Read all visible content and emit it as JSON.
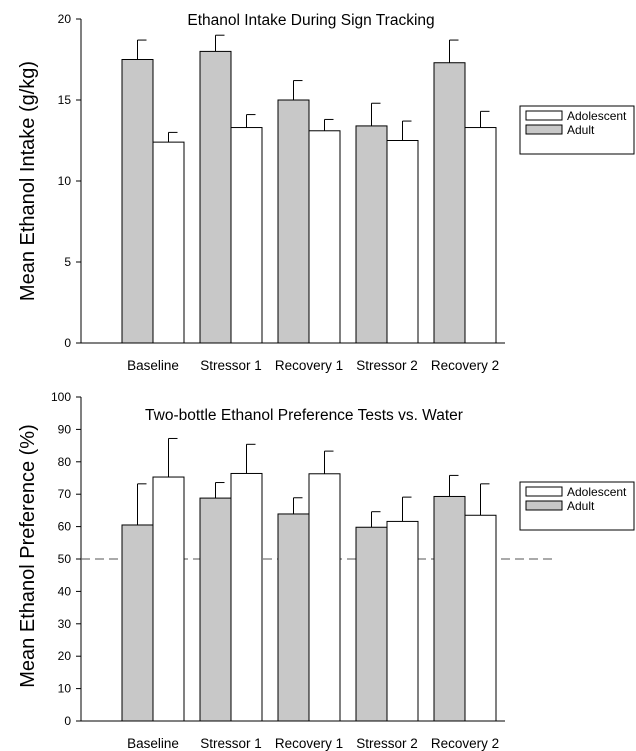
{
  "chart_data": [
    {
      "type": "bar",
      "title": "Ethanol Intake During Sign Tracking",
      "xlabel": "",
      "ylabel": "Mean Ethanol Intake (g/kg)",
      "ylim": [
        0,
        20
      ],
      "yticks": [
        0,
        5,
        10,
        15,
        20
      ],
      "categories": [
        "Baseline",
        "Stressor 1",
        "Recovery 1",
        "Stressor 2",
        "Recovery 2"
      ],
      "series": [
        {
          "name": "Adult",
          "color": "#c8c8c8",
          "values": [
            17.5,
            18.0,
            15.0,
            13.4,
            17.3
          ],
          "errors": [
            1.2,
            1.0,
            1.2,
            1.4,
            1.4
          ]
        },
        {
          "name": "Adolescent",
          "color": "#ffffff",
          "values": [
            12.4,
            13.3,
            13.1,
            12.5,
            13.3
          ],
          "errors": [
            0.6,
            0.8,
            0.7,
            1.2,
            1.0
          ]
        }
      ],
      "legend": {
        "placement": "right",
        "entries": [
          "Adolescent",
          "Adult"
        ]
      },
      "grid": false
    },
    {
      "type": "bar",
      "title": "Two-bottle Ethanol Preference Tests vs. Water",
      "xlabel": "",
      "ylabel": "Mean Ethanol Preference (%)",
      "ylim": [
        0,
        100
      ],
      "yticks": [
        0,
        10,
        20,
        30,
        40,
        50,
        60,
        70,
        80,
        90,
        100
      ],
      "categories": [
        "Baseline",
        "Stressor 1",
        "Recovery 1",
        "Stressor 2",
        "Recovery 2"
      ],
      "series": [
        {
          "name": "Adult",
          "color": "#c8c8c8",
          "values": [
            60.5,
            68.8,
            63.9,
            59.8,
            69.3
          ],
          "errors": [
            12.7,
            4.8,
            5.0,
            4.8,
            6.5
          ]
        },
        {
          "name": "Adolescent",
          "color": "#ffffff",
          "values": [
            75.3,
            76.4,
            76.3,
            61.6,
            63.5
          ],
          "errors": [
            11.9,
            9.0,
            7.0,
            7.5,
            9.7
          ]
        }
      ],
      "reference_line": {
        "y": 50,
        "style": "dashed"
      },
      "legend": {
        "placement": "right",
        "entries": [
          "Adolescent",
          "Adult"
        ]
      },
      "grid": false
    }
  ]
}
